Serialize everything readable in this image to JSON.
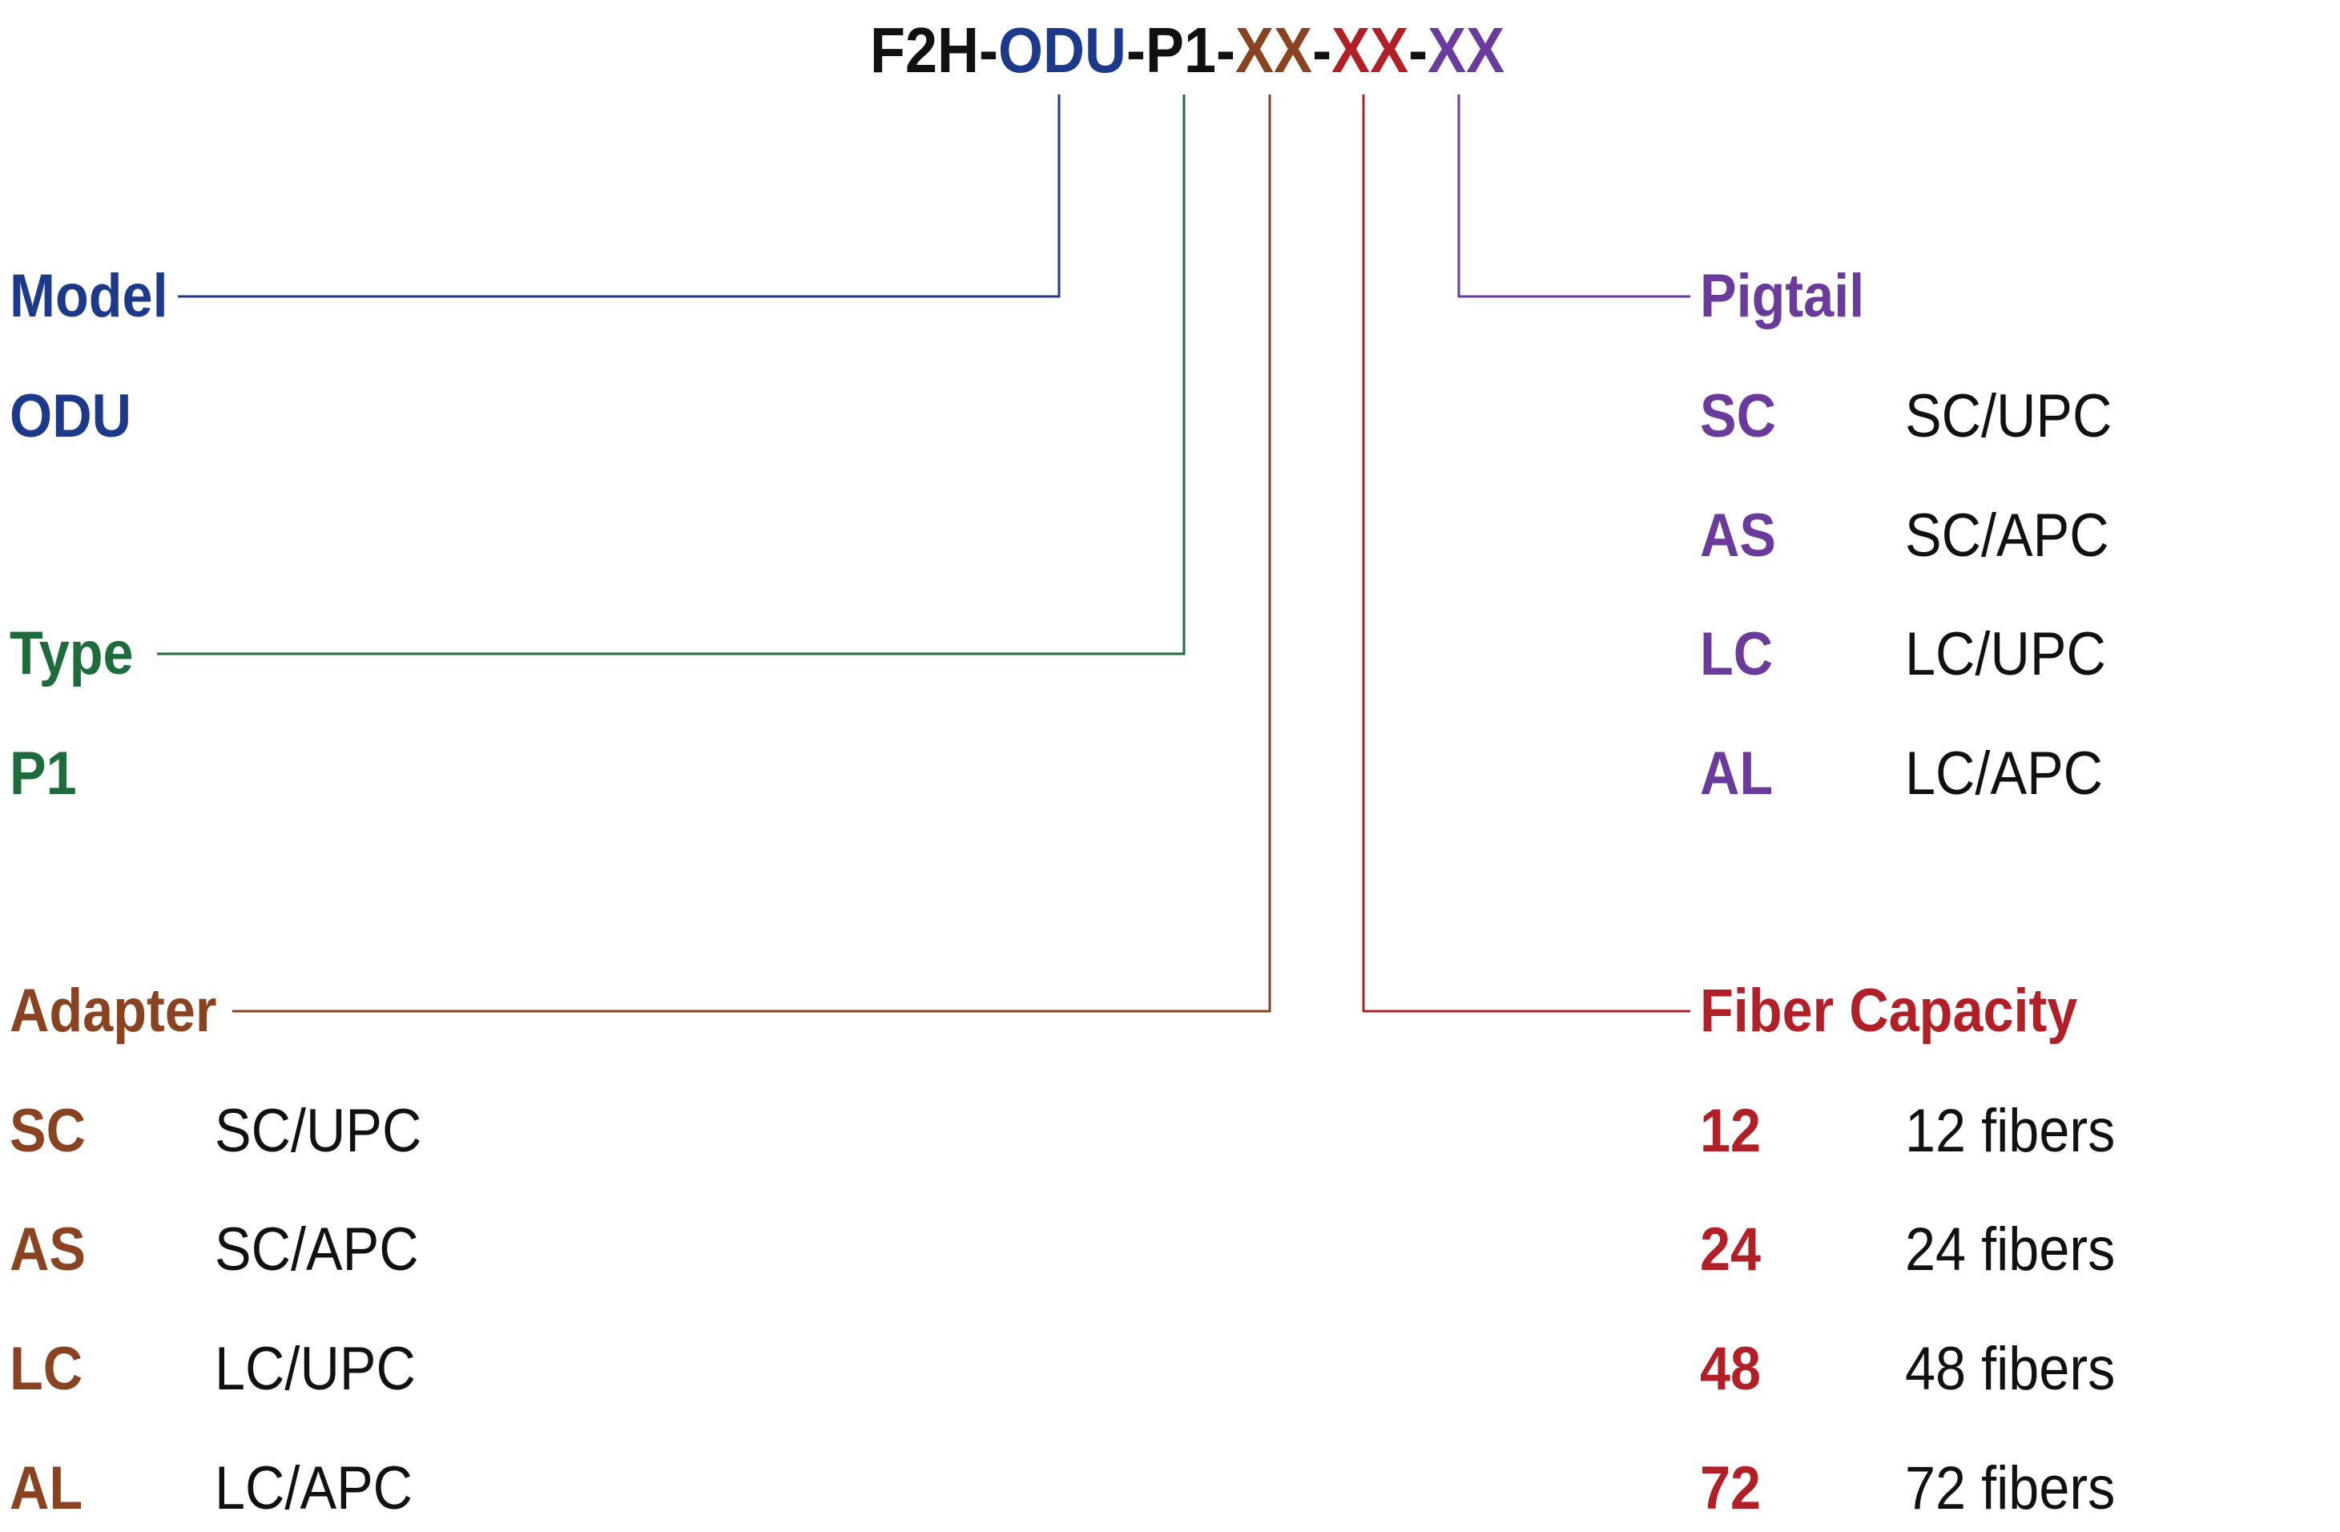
{
  "colors": {
    "black": "#111111",
    "model": "#1d3a8a",
    "type": "#1e6b3c",
    "adapter": "#8a4320",
    "fiber": "#b22027",
    "pigtail": "#6a3b9a"
  },
  "code": {
    "prefix": "F2H-",
    "model": "ODU",
    "sep1": "-",
    "type": "P1",
    "sep2": "-",
    "adapter": "XX",
    "sep3": "-",
    "fiber": "XX",
    "sep4": "-",
    "pigtail": "XX"
  },
  "model": {
    "title": "Model",
    "value": "ODU"
  },
  "type": {
    "title": "Type",
    "value": "P1"
  },
  "adapter": {
    "title": "Adapter",
    "options": [
      {
        "code": "SC",
        "desc": "SC/UPC"
      },
      {
        "code": "AS",
        "desc": "SC/APC"
      },
      {
        "code": "LC",
        "desc": "LC/UPC"
      },
      {
        "code": "AL",
        "desc": "LC/APC"
      }
    ]
  },
  "pigtail": {
    "title": "Pigtail",
    "options": [
      {
        "code": "SC",
        "desc": "SC/UPC"
      },
      {
        "code": "AS",
        "desc": "SC/APC"
      },
      {
        "code": "LC",
        "desc": "LC/UPC"
      },
      {
        "code": "AL",
        "desc": "LC/APC"
      }
    ]
  },
  "fiber_capacity": {
    "title": "Fiber Capacity",
    "options": [
      {
        "code": "12",
        "desc": "12 fibers"
      },
      {
        "code": "24",
        "desc": "24 fibers"
      },
      {
        "code": "48",
        "desc": "48 fibers"
      },
      {
        "code": "72",
        "desc": "72 fibers"
      }
    ]
  }
}
